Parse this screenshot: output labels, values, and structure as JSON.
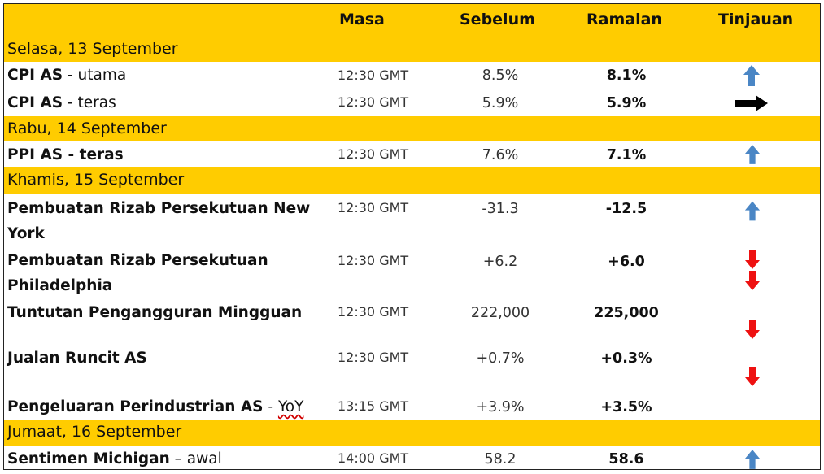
{
  "header": {
    "masa": "Masa",
    "sebelum": "Sebelum",
    "ramalan": "Ramalan",
    "tinjauan": "Tinjauan"
  },
  "days": {
    "tue": "Selasa, 13 September",
    "wed": "Rabu, 14 September",
    "thu": "Khamis, 15 September",
    "fri": "Jumaat, 16 September"
  },
  "rows": [
    {
      "name_bold": "CPI AS",
      "name_rest": " - utama",
      "time": "12:30 GMT",
      "prev": "8.5%",
      "forecast": "8.1%",
      "outlook": "up-arrow-icon"
    },
    {
      "name_bold": "CPI AS",
      "name_rest": " - teras",
      "time": "12:30 GMT",
      "prev": "5.9%",
      "forecast": "5.9%",
      "outlook": "right-arrow-icon"
    },
    {
      "name_bold": "PPI AS - teras",
      "time": "12:30 GMT",
      "prev": "7.6%",
      "forecast": "7.1%",
      "outlook": "up-arrow-icon"
    },
    {
      "name_bold": "Pembuatan Rizab Persekutuan New York",
      "time": "12:30 GMT",
      "prev": "-31.3",
      "forecast": "-12.5",
      "outlook": "up-arrow-icon"
    },
    {
      "name_bold": "Pembuatan Rizab Persekutuan Philadelphia",
      "time": "12:30 GMT",
      "prev": "+6.2",
      "forecast": "+6.0",
      "outlook": "down-arrow-icon"
    },
    {
      "name_bold": "Tuntutan Pengangguran Mingguan",
      "time": "12:30 GMT",
      "prev": "222,000",
      "forecast": "225,000",
      "outlook": "down-arrow-icon"
    },
    {
      "name_bold": "Jualan Runcit AS",
      "time": "12:30 GMT",
      "prev": "+0.7%",
      "forecast": "+0.3%",
      "outlook": "down-arrow-icon"
    },
    {
      "name_bold": "Pengeluaran Perindustrian AS",
      "name_rest": " - ",
      "name_squig": "YoY",
      "time": "13:15 GMT",
      "prev": "+3.9%",
      "forecast": "+3.5%",
      "outlook": "down-arrow-icon"
    },
    {
      "name_bold": "Sentimen Michigan",
      "name_rest": " – awal",
      "time": "14:00 GMT",
      "prev": "58.2",
      "forecast": "58.6",
      "outlook": "up-arrow-icon"
    }
  ],
  "colors": {
    "header_bg": "#ffcc00",
    "up": "#4a86c5",
    "down": "#ee1111",
    "right": "#000000"
  }
}
